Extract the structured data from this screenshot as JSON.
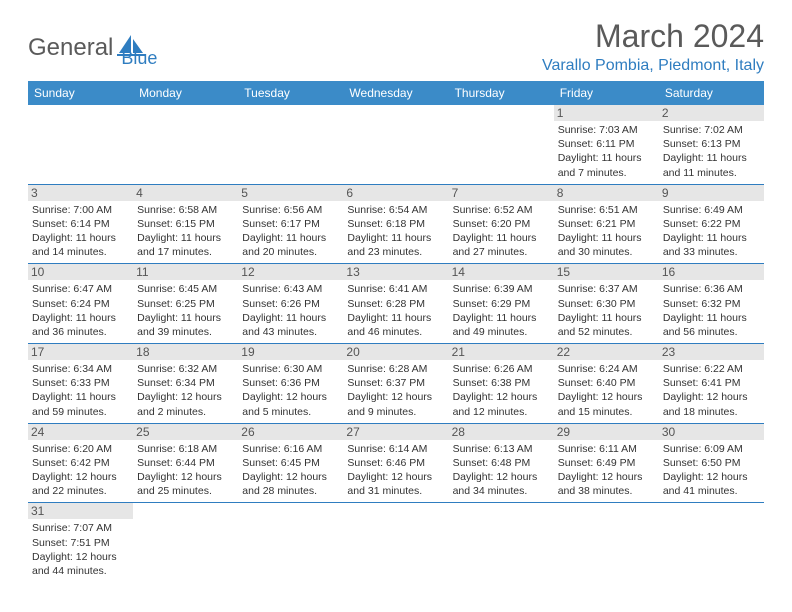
{
  "logo": {
    "word1": "General",
    "word2": "Blue"
  },
  "title": "March 2024",
  "location": "Varallo Pombia, Piedmont, Italy",
  "colors": {
    "header_bg": "#3b8bc8",
    "accent": "#2f7dc0",
    "daynum_bg": "#e6e6e6",
    "text_gray": "#5a5a5a"
  },
  "daysOfWeek": [
    "Sunday",
    "Monday",
    "Tuesday",
    "Wednesday",
    "Thursday",
    "Friday",
    "Saturday"
  ],
  "weeks": [
    [
      null,
      null,
      null,
      null,
      null,
      {
        "n": "1",
        "sr": "Sunrise: 7:03 AM",
        "ss": "Sunset: 6:11 PM",
        "d1": "Daylight: 11 hours",
        "d2": "and 7 minutes."
      },
      {
        "n": "2",
        "sr": "Sunrise: 7:02 AM",
        "ss": "Sunset: 6:13 PM",
        "d1": "Daylight: 11 hours",
        "d2": "and 11 minutes."
      }
    ],
    [
      {
        "n": "3",
        "sr": "Sunrise: 7:00 AM",
        "ss": "Sunset: 6:14 PM",
        "d1": "Daylight: 11 hours",
        "d2": "and 14 minutes."
      },
      {
        "n": "4",
        "sr": "Sunrise: 6:58 AM",
        "ss": "Sunset: 6:15 PM",
        "d1": "Daylight: 11 hours",
        "d2": "and 17 minutes."
      },
      {
        "n": "5",
        "sr": "Sunrise: 6:56 AM",
        "ss": "Sunset: 6:17 PM",
        "d1": "Daylight: 11 hours",
        "d2": "and 20 minutes."
      },
      {
        "n": "6",
        "sr": "Sunrise: 6:54 AM",
        "ss": "Sunset: 6:18 PM",
        "d1": "Daylight: 11 hours",
        "d2": "and 23 minutes."
      },
      {
        "n": "7",
        "sr": "Sunrise: 6:52 AM",
        "ss": "Sunset: 6:20 PM",
        "d1": "Daylight: 11 hours",
        "d2": "and 27 minutes."
      },
      {
        "n": "8",
        "sr": "Sunrise: 6:51 AM",
        "ss": "Sunset: 6:21 PM",
        "d1": "Daylight: 11 hours",
        "d2": "and 30 minutes."
      },
      {
        "n": "9",
        "sr": "Sunrise: 6:49 AM",
        "ss": "Sunset: 6:22 PM",
        "d1": "Daylight: 11 hours",
        "d2": "and 33 minutes."
      }
    ],
    [
      {
        "n": "10",
        "sr": "Sunrise: 6:47 AM",
        "ss": "Sunset: 6:24 PM",
        "d1": "Daylight: 11 hours",
        "d2": "and 36 minutes."
      },
      {
        "n": "11",
        "sr": "Sunrise: 6:45 AM",
        "ss": "Sunset: 6:25 PM",
        "d1": "Daylight: 11 hours",
        "d2": "and 39 minutes."
      },
      {
        "n": "12",
        "sr": "Sunrise: 6:43 AM",
        "ss": "Sunset: 6:26 PM",
        "d1": "Daylight: 11 hours",
        "d2": "and 43 minutes."
      },
      {
        "n": "13",
        "sr": "Sunrise: 6:41 AM",
        "ss": "Sunset: 6:28 PM",
        "d1": "Daylight: 11 hours",
        "d2": "and 46 minutes."
      },
      {
        "n": "14",
        "sr": "Sunrise: 6:39 AM",
        "ss": "Sunset: 6:29 PM",
        "d1": "Daylight: 11 hours",
        "d2": "and 49 minutes."
      },
      {
        "n": "15",
        "sr": "Sunrise: 6:37 AM",
        "ss": "Sunset: 6:30 PM",
        "d1": "Daylight: 11 hours",
        "d2": "and 52 minutes."
      },
      {
        "n": "16",
        "sr": "Sunrise: 6:36 AM",
        "ss": "Sunset: 6:32 PM",
        "d1": "Daylight: 11 hours",
        "d2": "and 56 minutes."
      }
    ],
    [
      {
        "n": "17",
        "sr": "Sunrise: 6:34 AM",
        "ss": "Sunset: 6:33 PM",
        "d1": "Daylight: 11 hours",
        "d2": "and 59 minutes."
      },
      {
        "n": "18",
        "sr": "Sunrise: 6:32 AM",
        "ss": "Sunset: 6:34 PM",
        "d1": "Daylight: 12 hours",
        "d2": "and 2 minutes."
      },
      {
        "n": "19",
        "sr": "Sunrise: 6:30 AM",
        "ss": "Sunset: 6:36 PM",
        "d1": "Daylight: 12 hours",
        "d2": "and 5 minutes."
      },
      {
        "n": "20",
        "sr": "Sunrise: 6:28 AM",
        "ss": "Sunset: 6:37 PM",
        "d1": "Daylight: 12 hours",
        "d2": "and 9 minutes."
      },
      {
        "n": "21",
        "sr": "Sunrise: 6:26 AM",
        "ss": "Sunset: 6:38 PM",
        "d1": "Daylight: 12 hours",
        "d2": "and 12 minutes."
      },
      {
        "n": "22",
        "sr": "Sunrise: 6:24 AM",
        "ss": "Sunset: 6:40 PM",
        "d1": "Daylight: 12 hours",
        "d2": "and 15 minutes."
      },
      {
        "n": "23",
        "sr": "Sunrise: 6:22 AM",
        "ss": "Sunset: 6:41 PM",
        "d1": "Daylight: 12 hours",
        "d2": "and 18 minutes."
      }
    ],
    [
      {
        "n": "24",
        "sr": "Sunrise: 6:20 AM",
        "ss": "Sunset: 6:42 PM",
        "d1": "Daylight: 12 hours",
        "d2": "and 22 minutes."
      },
      {
        "n": "25",
        "sr": "Sunrise: 6:18 AM",
        "ss": "Sunset: 6:44 PM",
        "d1": "Daylight: 12 hours",
        "d2": "and 25 minutes."
      },
      {
        "n": "26",
        "sr": "Sunrise: 6:16 AM",
        "ss": "Sunset: 6:45 PM",
        "d1": "Daylight: 12 hours",
        "d2": "and 28 minutes."
      },
      {
        "n": "27",
        "sr": "Sunrise: 6:14 AM",
        "ss": "Sunset: 6:46 PM",
        "d1": "Daylight: 12 hours",
        "d2": "and 31 minutes."
      },
      {
        "n": "28",
        "sr": "Sunrise: 6:13 AM",
        "ss": "Sunset: 6:48 PM",
        "d1": "Daylight: 12 hours",
        "d2": "and 34 minutes."
      },
      {
        "n": "29",
        "sr": "Sunrise: 6:11 AM",
        "ss": "Sunset: 6:49 PM",
        "d1": "Daylight: 12 hours",
        "d2": "and 38 minutes."
      },
      {
        "n": "30",
        "sr": "Sunrise: 6:09 AM",
        "ss": "Sunset: 6:50 PM",
        "d1": "Daylight: 12 hours",
        "d2": "and 41 minutes."
      }
    ],
    [
      {
        "n": "31",
        "sr": "Sunrise: 7:07 AM",
        "ss": "Sunset: 7:51 PM",
        "d1": "Daylight: 12 hours",
        "d2": "and 44 minutes."
      },
      null,
      null,
      null,
      null,
      null,
      null
    ]
  ]
}
